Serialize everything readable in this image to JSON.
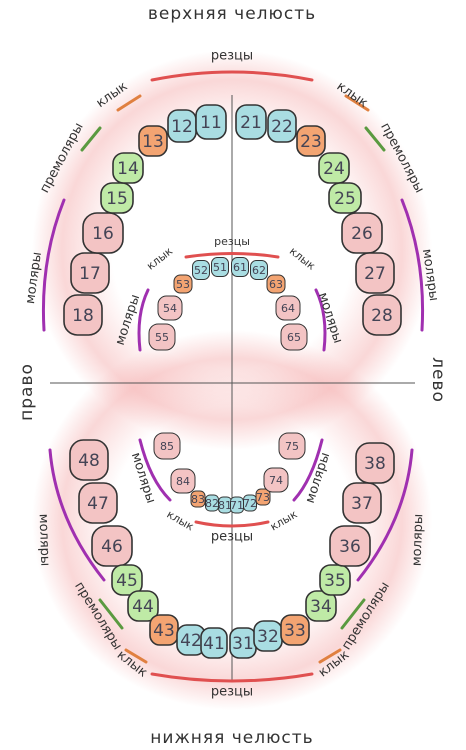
{
  "titles": {
    "upper": "верхняя челюсть",
    "lower": "нижняя челюсть",
    "right": "право",
    "left": "лево"
  },
  "teeth": {
    "upper_permanent": [
      "18",
      "17",
      "16",
      "15",
      "14",
      "13",
      "12",
      "11",
      "21",
      "22",
      "23",
      "24",
      "25",
      "26",
      "27",
      "28"
    ],
    "upper_primary": [
      "55",
      "54",
      "53",
      "52",
      "51",
      "61",
      "62",
      "63",
      "64",
      "65"
    ],
    "lower_primary": [
      "85",
      "84",
      "83",
      "82",
      "81",
      "71",
      "72",
      "73",
      "74",
      "75"
    ],
    "lower_permanent": [
      "48",
      "47",
      "46",
      "45",
      "44",
      "43",
      "42",
      "41",
      "31",
      "32",
      "33",
      "34",
      "35",
      "36",
      "37",
      "38"
    ]
  },
  "labels": [
    "резцы",
    "клык",
    "клык",
    "премоляры",
    "премоляры",
    "моляры",
    "моляры",
    "резцы",
    "клык",
    "клык",
    "моляры",
    "моляры",
    "моляры",
    "моляры",
    "клык",
    "резцы",
    "клык",
    "моляры",
    "моляры",
    "премоляры",
    "премоляры",
    "клык",
    "клык",
    "резцы"
  ]
}
